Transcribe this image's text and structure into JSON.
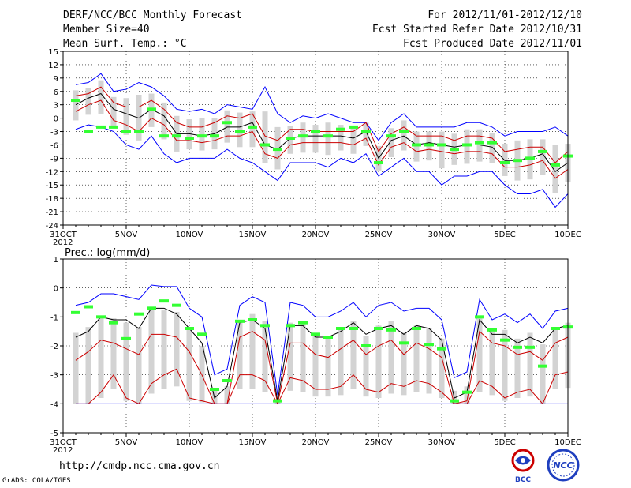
{
  "header": {
    "title": "DERF/NCC/BCC Monthly Forecast",
    "member_size": "Member Size=40",
    "variable": "Mean Surf. Temp.: °C",
    "period": "For 2012/11/01-2012/12/10",
    "started": "Fcst Started Refer Date 2012/10/31",
    "produced": "Fcst Produced Date 2012/11/01"
  },
  "footer": {
    "url": "http://cmdp.ncc.cma.gov.cn",
    "credit": "GrADS: COLA/IGES"
  },
  "logos": {
    "bcc": "BCC",
    "ncc": "NCC"
  },
  "colors": {
    "envelope": "#0000ff",
    "spread": "#cc0000",
    "mean": "#000000",
    "observed": "#33ff33",
    "box": "#d3d3d3"
  },
  "chart_data": [
    {
      "type": "line",
      "title": "Mean Surf. Temp.: °C",
      "x_tick_labels": [
        "31OCT",
        "5NOV",
        "10NOV",
        "15NOV",
        "20NOV",
        "25NOV",
        "30NOV",
        "5DEC",
        "10DEC"
      ],
      "x_tick_days": [
        0,
        5,
        10,
        15,
        20,
        25,
        30,
        35,
        40
      ],
      "year_label": "2012",
      "days": [
        1,
        2,
        3,
        4,
        5,
        6,
        7,
        8,
        9,
        10,
        11,
        12,
        13,
        14,
        15,
        16,
        17,
        18,
        19,
        20,
        21,
        22,
        23,
        24,
        25,
        26,
        27,
        28,
        29,
        30,
        31,
        32,
        33,
        34,
        35,
        36,
        37,
        38,
        39,
        40
      ],
      "ylim": [
        -24,
        15
      ],
      "yticks": [
        15,
        12,
        9,
        6,
        3,
        0,
        -3,
        -6,
        -9,
        -12,
        -15,
        -18,
        -21,
        -24
      ],
      "series": [
        {
          "name": "ensemble max",
          "color": "#0000ff",
          "values": [
            7.5,
            8,
            10,
            6,
            6.5,
            8,
            7,
            5,
            2,
            1.5,
            2,
            1,
            3,
            2.5,
            2,
            7,
            1,
            -1,
            0.5,
            0,
            1,
            0,
            -1,
            -1,
            -5,
            -1,
            1,
            -2,
            -2,
            -2,
            -2,
            -1,
            -1,
            -2,
            -4,
            -3,
            -3,
            -3,
            -2,
            -4
          ]
        },
        {
          "name": "upper spread",
          "color": "#cc0000",
          "values": [
            5,
            5.5,
            7,
            3.5,
            2.5,
            2.5,
            4,
            2,
            -1,
            -2,
            -2,
            -1,
            0.5,
            0,
            1,
            -4,
            -5,
            -2.5,
            -2.5,
            -3,
            -3,
            -3,
            -3,
            -1,
            -7.5,
            -3.5,
            -2,
            -4,
            -4,
            -4,
            -5,
            -4,
            -4,
            -4.5,
            -7.5,
            -7,
            -6.5,
            -6.5,
            -10,
            -7.5
          ]
        },
        {
          "name": "ensemble mean",
          "color": "#000000",
          "values": [
            3,
            4.5,
            5.5,
            2,
            1,
            0,
            2,
            0.5,
            -3.5,
            -3.5,
            -4,
            -3.5,
            -2,
            -2,
            -1,
            -6,
            -7,
            -4.5,
            -4,
            -4,
            -4,
            -4,
            -4.5,
            -3,
            -9,
            -5,
            -4,
            -6,
            -5.5,
            -6,
            -6.5,
            -6,
            -6,
            -6.5,
            -9.5,
            -9.5,
            -9,
            -8,
            -12,
            -10
          ]
        },
        {
          "name": "lower spread",
          "color": "#cc0000",
          "values": [
            1.5,
            3,
            4,
            -0.5,
            -1.5,
            -3,
            0,
            -1.5,
            -5,
            -5,
            -5.5,
            -5,
            -4,
            -4,
            -3,
            -8,
            -9,
            -6,
            -5.5,
            -5.5,
            -5.5,
            -5.5,
            -6,
            -4.5,
            -10.5,
            -6.5,
            -5.5,
            -7.5,
            -7,
            -7.5,
            -8,
            -7.5,
            -7.5,
            -8,
            -11,
            -11,
            -10.5,
            -9.5,
            -13.5,
            -11.5
          ]
        },
        {
          "name": "ensemble min",
          "color": "#0000ff",
          "values": [
            -2.5,
            -1.5,
            -2,
            -3,
            -6,
            -7,
            -4,
            -8,
            -10,
            -9,
            -9,
            -9,
            -7,
            -9,
            -10,
            -12,
            -14,
            -10,
            -10,
            -10,
            -11,
            -9,
            -10,
            -8,
            -13,
            -11,
            -9,
            -12,
            -12,
            -15,
            -13,
            -13,
            -12,
            -12,
            -15,
            -17,
            -17,
            -16,
            -20,
            -17
          ]
        },
        {
          "name": "observed",
          "color": "#33ff33",
          "values": [
            4,
            -3,
            -2,
            -2,
            -3,
            -3,
            2,
            -4,
            -4,
            -4.5,
            -4,
            -4,
            -1,
            -3,
            -2,
            -6,
            -7,
            -4.5,
            -4,
            -3,
            -4,
            -2.5,
            -2,
            -3,
            -10,
            -4,
            -3,
            -6,
            -6,
            -6,
            -7,
            -6,
            -5.5,
            -5.5,
            -10,
            -9.5,
            -9,
            -7.5,
            -10.5,
            -8.5
          ]
        }
      ]
    },
    {
      "type": "line",
      "title": "Prec.: log(mm/d)",
      "x_tick_labels": [
        "31OCT",
        "5NOV",
        "10NOV",
        "15NOV",
        "20NOV",
        "25NOV",
        "30NOV",
        "5DEC",
        "10DEC"
      ],
      "x_tick_days": [
        0,
        5,
        10,
        15,
        20,
        25,
        30,
        35,
        40
      ],
      "year_label": "2012",
      "days": [
        1,
        2,
        3,
        4,
        5,
        6,
        7,
        8,
        9,
        10,
        11,
        12,
        13,
        14,
        15,
        16,
        17,
        18,
        19,
        20,
        21,
        22,
        23,
        24,
        25,
        26,
        27,
        28,
        29,
        30,
        31,
        32,
        33,
        34,
        35,
        36,
        37,
        38,
        39,
        40
      ],
      "ylim": [
        -5,
        1
      ],
      "yticks": [
        1,
        0,
        -1,
        -2,
        -3,
        -4,
        -5
      ],
      "series": [
        {
          "name": "ensemble max",
          "color": "#0000ff",
          "values": [
            -0.6,
            -0.5,
            -0.2,
            -0.2,
            -0.3,
            -0.4,
            0.1,
            0.05,
            0.05,
            -0.7,
            -1.0,
            -3.0,
            -2.8,
            -0.6,
            -0.3,
            -0.5,
            -3.7,
            -0.5,
            -0.6,
            -1.0,
            -1.0,
            -0.8,
            -0.5,
            -1.0,
            -0.6,
            -0.5,
            -0.8,
            -0.7,
            -0.7,
            -1.1,
            -3.1,
            -2.9,
            -0.4,
            -1.1,
            -0.9,
            -1.2,
            -0.9,
            -1.4,
            -0.8,
            -0.7
          ]
        },
        {
          "name": "upper spread",
          "color": "#cc0000",
          "values": [
            -2.5,
            -2.2,
            -1.8,
            -1.9,
            -2.1,
            -2.3,
            -1.6,
            -1.6,
            -1.7,
            -2.2,
            -3.0,
            -4.0,
            -4.0,
            -1.7,
            -1.5,
            -1.8,
            -4.0,
            -1.9,
            -1.9,
            -2.3,
            -2.4,
            -2.1,
            -1.8,
            -2.3,
            -2.0,
            -1.8,
            -2.3,
            -1.9,
            -2.1,
            -2.4,
            -4.0,
            -3.9,
            -1.5,
            -1.9,
            -2.0,
            -2.3,
            -2.2,
            -2.5,
            -1.9,
            -1.7
          ]
        },
        {
          "name": "ensemble mean",
          "color": "#000000",
          "values": [
            -1.7,
            -1.5,
            -1.0,
            -1.1,
            -1.1,
            -1.4,
            -0.7,
            -0.7,
            -0.9,
            -1.4,
            -1.9,
            -3.8,
            -3.4,
            -1.2,
            -1.1,
            -1.4,
            -3.9,
            -1.3,
            -1.3,
            -1.7,
            -1.7,
            -1.5,
            -1.2,
            -1.6,
            -1.4,
            -1.3,
            -1.6,
            -1.3,
            -1.4,
            -1.8,
            -3.8,
            -3.6,
            -1.1,
            -1.6,
            -1.6,
            -1.9,
            -1.7,
            -1.9,
            -1.4,
            -1.3
          ]
        },
        {
          "name": "lower spread",
          "color": "#cc0000",
          "values": [
            -4.0,
            -4.0,
            -3.6,
            -3.0,
            -3.8,
            -4.0,
            -3.3,
            -3.0,
            -2.8,
            -3.8,
            -3.9,
            -4.0,
            -4.0,
            -3.0,
            -3.0,
            -3.2,
            -4.0,
            -3.1,
            -3.2,
            -3.5,
            -3.5,
            -3.4,
            -3.0,
            -3.5,
            -3.6,
            -3.3,
            -3.4,
            -3.2,
            -3.3,
            -3.6,
            -4.0,
            -4.0,
            -3.2,
            -3.4,
            -3.8,
            -3.6,
            -3.5,
            -4.0,
            -3.0,
            -2.9
          ]
        },
        {
          "name": "ensemble min",
          "color": "#0000ff",
          "values": [
            -4.0,
            -4.0,
            -4.0,
            -4.0,
            -4.0,
            -4.0,
            -4.0,
            -4.0,
            -4.0,
            -4.0,
            -4.0,
            -4.0,
            -4.0,
            -4.0,
            -4.0,
            -4.0,
            -4.0,
            -4.0,
            -4.0,
            -4.0,
            -4.0,
            -4.0,
            -4.0,
            -4.0,
            -4.0,
            -4.0,
            -4.0,
            -4.0,
            -4.0,
            -4.0,
            -4.0,
            -4.0,
            -4.0,
            -4.0,
            -4.0,
            -4.0,
            -4.0,
            -4.0,
            -4.0,
            -4.0
          ]
        },
        {
          "name": "observed",
          "color": "#33ff33",
          "values": [
            -0.85,
            -0.65,
            -1.0,
            -1.2,
            -1.75,
            -0.9,
            -0.7,
            -0.45,
            -0.6,
            -1.4,
            -1.6,
            -3.5,
            -3.2,
            -1.15,
            -1.1,
            -1.3,
            -3.9,
            -1.3,
            -1.2,
            -1.6,
            -1.7,
            -1.4,
            -1.4,
            -2.0,
            -1.4,
            -1.45,
            -1.9,
            -1.4,
            -1.95,
            -2.1,
            -3.9,
            -3.6,
            -1.0,
            -1.45,
            -1.8,
            -2.05,
            -2.05,
            -2.7,
            -1.4,
            -1.35
          ]
        }
      ]
    }
  ]
}
